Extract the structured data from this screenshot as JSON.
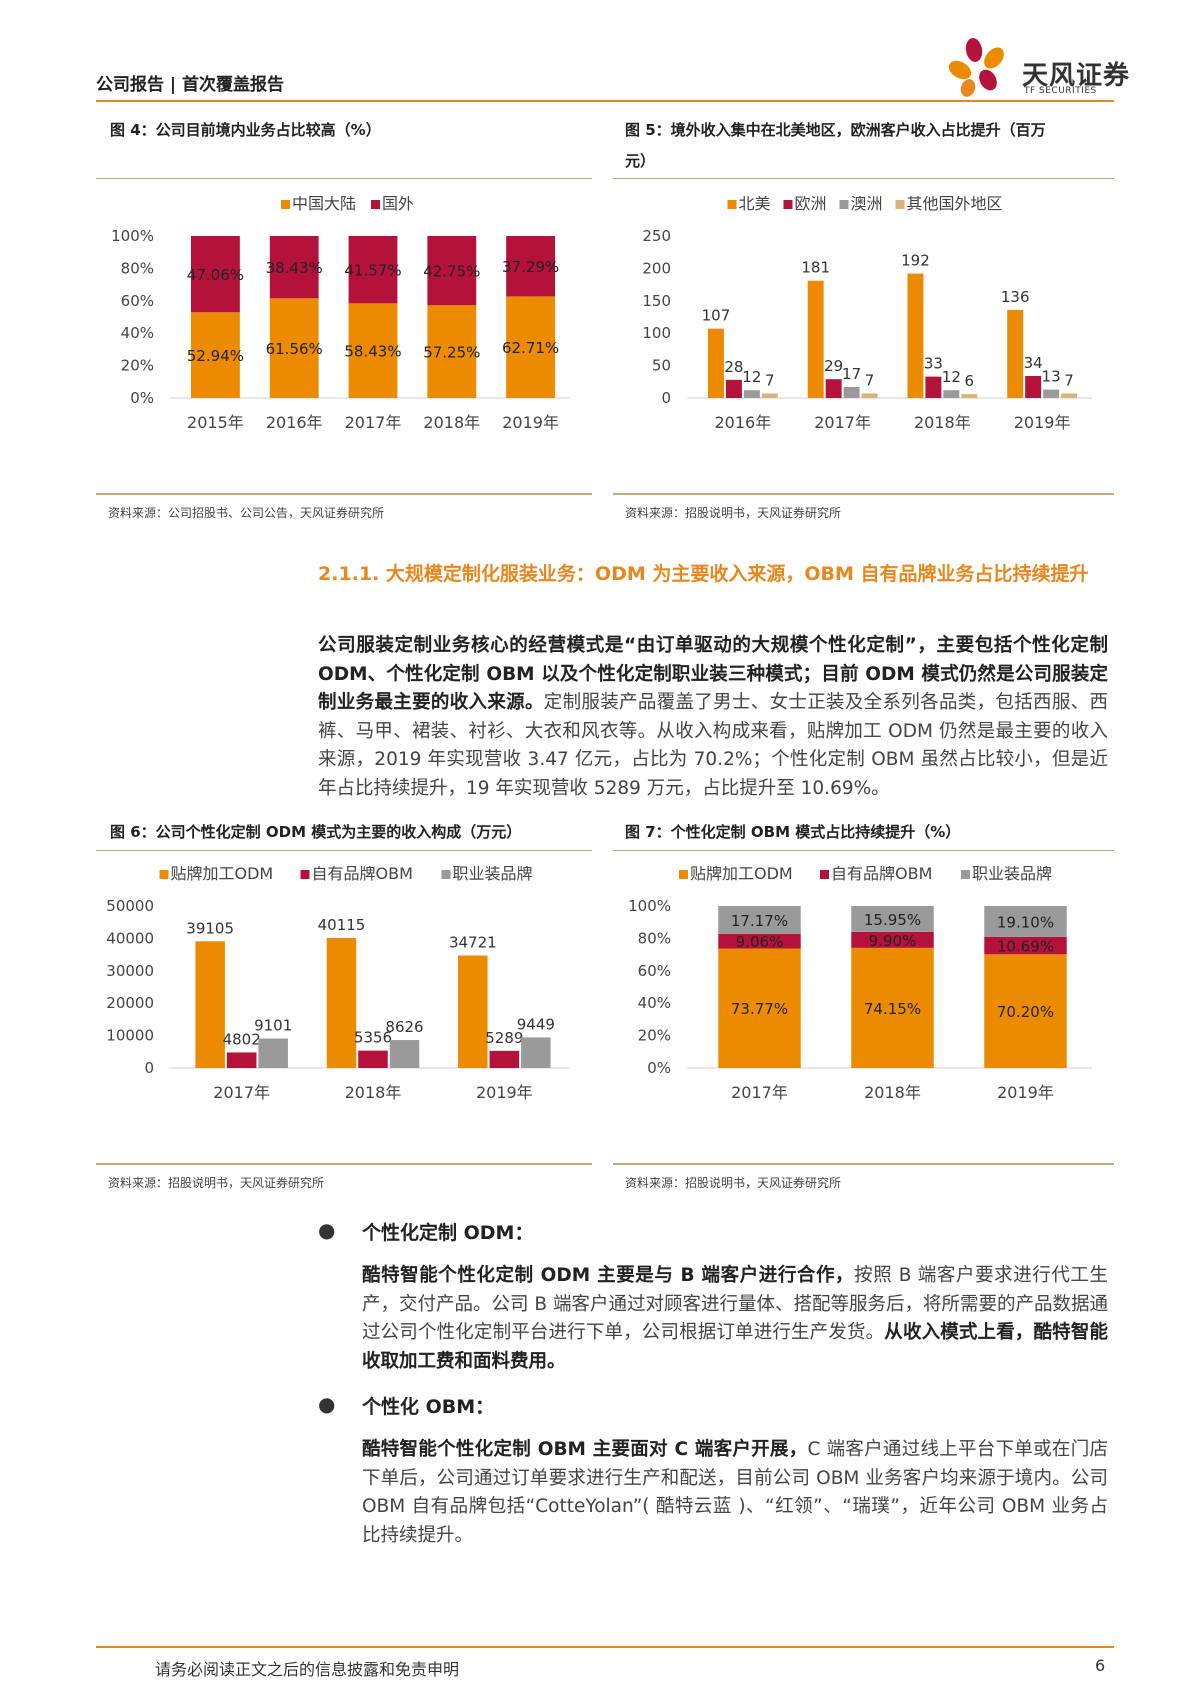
{
  "header": {
    "report_type": "公司报告 | 首次覆盖报告",
    "logo_name": "天风证券",
    "logo_sub": "TF SECURITIES"
  },
  "colors": {
    "accent": "#e8871e",
    "orange": "#ec8b00",
    "crimson": "#b5123b",
    "gray": "#9a9a9a",
    "tan": "#d9b27c"
  },
  "fig4": {
    "title": "图 4：公司目前境内业务占比较高（%）",
    "source": "资料来源：公司招股书、公司公告，天风证券研究所"
  },
  "fig5": {
    "title_line1": "图 5：境外收入集中在北美地区，欧洲客户收入占比提升（百万",
    "title_line2": "元）",
    "source": "资料来源：招股说明书，天风证券研究所"
  },
  "section": {
    "heading": "2.1.1. 大规模定制化服装业务：ODM 为主要收入来源，OBM 自有品牌业务占比持续提升",
    "para_bold": "公司服装定制业务核心的经营模式是“由订单驱动的大规模个性化定制”，主要包括个性化定制 ODM、个性化定制 OBM 以及个性化定制职业装三种模式；目前 ODM 模式仍然是公司服装定制业务最主要的收入来源。",
    "para_rest": "定制服装产品覆盖了男士、女士正装及全系列各品类，包括西服、西裤、马甲、裙装、衬衫、大衣和风衣等。从收入构成来看，贴牌加工 ODM 仍然是最主要的收入来源，2019 年实现营收 3.47 亿元，占比为 70.2%；个性化定制 OBM 虽然占比较小，但是近年占比持续提升，19 年实现营收 5289 万元，占比提升至 10.69%。"
  },
  "fig6": {
    "title": "图 6：公司个性化定制 ODM 模式为主要的收入构成（万元）",
    "source": "资料来源：招股说明书，天风证券研究所"
  },
  "fig7": {
    "title": "图 7：个性化定制 OBM 模式占比持续提升（%）",
    "source": "资料来源：招股说明书，天风证券研究所"
  },
  "bullets": [
    {
      "title": "个性化定制 ODM：",
      "bold1": "酷特智能个性化定制 ODM 主要是与 B 端客户进行合作，",
      "text1": "按照 B 端客户要求进行代工生产，交付产品。公司 B 端客户通过对顾客进行量体、搭配等服务后，将所需要的产品数据通过公司个性化定制平台进行下单，公司根据订单进行生产发货。",
      "bold2": "从收入模式上看，酷特智能收取加工费和面料费用。"
    },
    {
      "title": "个性化 OBM：",
      "bold1": "酷特智能个性化定制 OBM 主要面对 C 端客户开展，",
      "text1": "C 端客户通过线上平台下单或在门店下单后，公司通过订单要求进行生产和配送，目前公司 OBM 业务客户均来源于境内。公司 OBM 自有品牌包括“CotteYolan”( 酷特云蓝 )、“红领”、“瑞璞”，近年公司 OBM 业务占比持续提升。"
    }
  ],
  "footer": {
    "disclaimer": "请务必阅读正文之后的信息披露和免责申明",
    "page": "6"
  },
  "chart_data": [
    {
      "id": "fig4",
      "type": "bar",
      "stacked": true,
      "categories": [
        "2015年",
        "2016年",
        "2017年",
        "2018年",
        "2019年"
      ],
      "series": [
        {
          "name": "中国大陆",
          "color": "#ec8b00",
          "values": [
            52.94,
            61.56,
            58.43,
            57.25,
            62.71
          ],
          "labels": [
            "52.94%",
            "61.56%",
            "58.43%",
            "57.25%",
            "62.71%"
          ]
        },
        {
          "name": "国外",
          "color": "#b5123b",
          "values": [
            47.06,
            38.43,
            41.57,
            42.75,
            37.29
          ],
          "labels": [
            "47.06%",
            "38.43%",
            "41.57%",
            "42.75%",
            "37.29%"
          ]
        }
      ],
      "yticks": [
        "0%",
        "20%",
        "40%",
        "60%",
        "80%",
        "100%"
      ],
      "ylim": [
        0,
        100
      ],
      "legend": "top"
    },
    {
      "id": "fig5",
      "type": "bar",
      "categories": [
        "2016年",
        "2017年",
        "2018年",
        "2019年"
      ],
      "series": [
        {
          "name": "北美",
          "color": "#ec8b00",
          "values": [
            107,
            181,
            192,
            136
          ]
        },
        {
          "name": "欧洲",
          "color": "#b5123b",
          "values": [
            28,
            29,
            33,
            34
          ]
        },
        {
          "name": "澳洲",
          "color": "#9a9a9a",
          "values": [
            12,
            17,
            12,
            13
          ]
        },
        {
          "name": "其他国外地区",
          "color": "#d9b27c",
          "values": [
            7,
            7,
            6,
            7
          ]
        }
      ],
      "yticks": [
        "0",
        "50",
        "100",
        "150",
        "200",
        "250"
      ],
      "ylim": [
        0,
        250
      ],
      "legend": "top"
    },
    {
      "id": "fig6",
      "type": "bar",
      "categories": [
        "2017年",
        "2018年",
        "2019年"
      ],
      "series": [
        {
          "name": "贴牌加工ODM",
          "color": "#ec8b00",
          "values": [
            39105,
            40115,
            34721
          ]
        },
        {
          "name": "自有品牌OBM",
          "color": "#b5123b",
          "values": [
            4802,
            5356,
            5289
          ]
        },
        {
          "name": "职业装品牌",
          "color": "#9a9a9a",
          "values": [
            9101,
            8626,
            9449
          ]
        }
      ],
      "yticks": [
        "0",
        "10000",
        "20000",
        "30000",
        "40000",
        "50000"
      ],
      "ylim": [
        0,
        50000
      ],
      "legend": "top"
    },
    {
      "id": "fig7",
      "type": "bar",
      "stacked": true,
      "categories": [
        "2017年",
        "2018年",
        "2019年"
      ],
      "series": [
        {
          "name": "贴牌加工ODM",
          "color": "#ec8b00",
          "values": [
            73.77,
            74.15,
            70.2
          ],
          "labels": [
            "73.77%",
            "74.15%",
            "70.20%"
          ]
        },
        {
          "name": "自有品牌OBM",
          "color": "#b5123b",
          "values": [
            9.06,
            9.9,
            10.69
          ],
          "labels": [
            "9.06%",
            "9.90%",
            "10.69%"
          ]
        },
        {
          "name": "职业装品牌",
          "color": "#9a9a9a",
          "values": [
            17.17,
            15.95,
            19.1
          ],
          "labels": [
            "17.17%",
            "15.95%",
            "19.10%"
          ]
        }
      ],
      "yticks": [
        "0%",
        "20%",
        "40%",
        "60%",
        "80%",
        "100%"
      ],
      "ylim": [
        0,
        100
      ],
      "legend": "top"
    }
  ]
}
